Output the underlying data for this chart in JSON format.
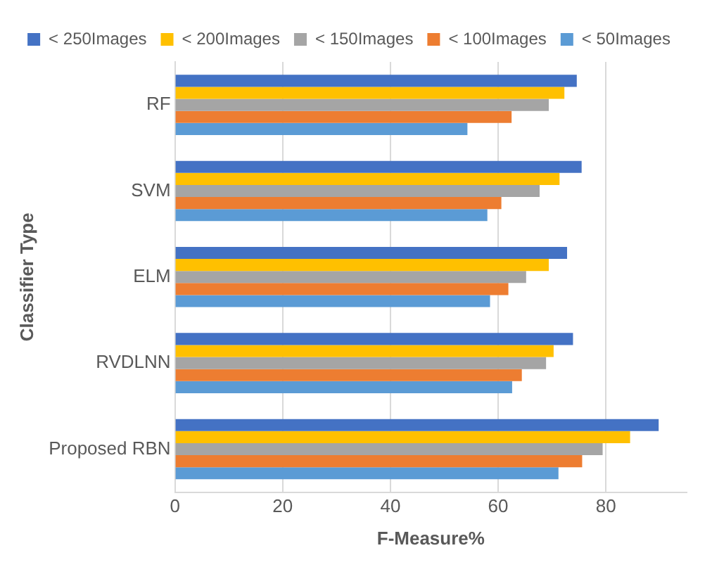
{
  "chart_data": {
    "type": "bar",
    "orientation": "horizontal",
    "categories": [
      "RF",
      "SVM",
      "ELM",
      "RVDLNN",
      "Proposed RBN"
    ],
    "series": [
      {
        "name": "< 250Images",
        "color": "#4472c4",
        "values": [
          74.6,
          75.5,
          72.8,
          73.9,
          89.8
        ]
      },
      {
        "name": "< 200Images",
        "color": "#ffc000",
        "values": [
          72.3,
          71.4,
          69.4,
          70.3,
          84.5
        ]
      },
      {
        "name": "< 150Images",
        "color": "#a5a5a5",
        "values": [
          69.4,
          67.7,
          65.2,
          68.9,
          79.4
        ]
      },
      {
        "name": "< 100Images",
        "color": "#ed7d31",
        "values": [
          62.5,
          60.6,
          61.9,
          64.4,
          75.6
        ]
      },
      {
        "name": "< 50Images",
        "color": "#5b9bd5",
        "values": [
          54.3,
          58.0,
          58.5,
          62.6,
          71.2
        ]
      }
    ],
    "xlim": [
      0,
      95
    ],
    "xticks": [
      0,
      20,
      40,
      60,
      80
    ],
    "xlabel": "F-Measure%",
    "ylabel": "Classifier Type",
    "grid": "x",
    "legend": "top"
  }
}
